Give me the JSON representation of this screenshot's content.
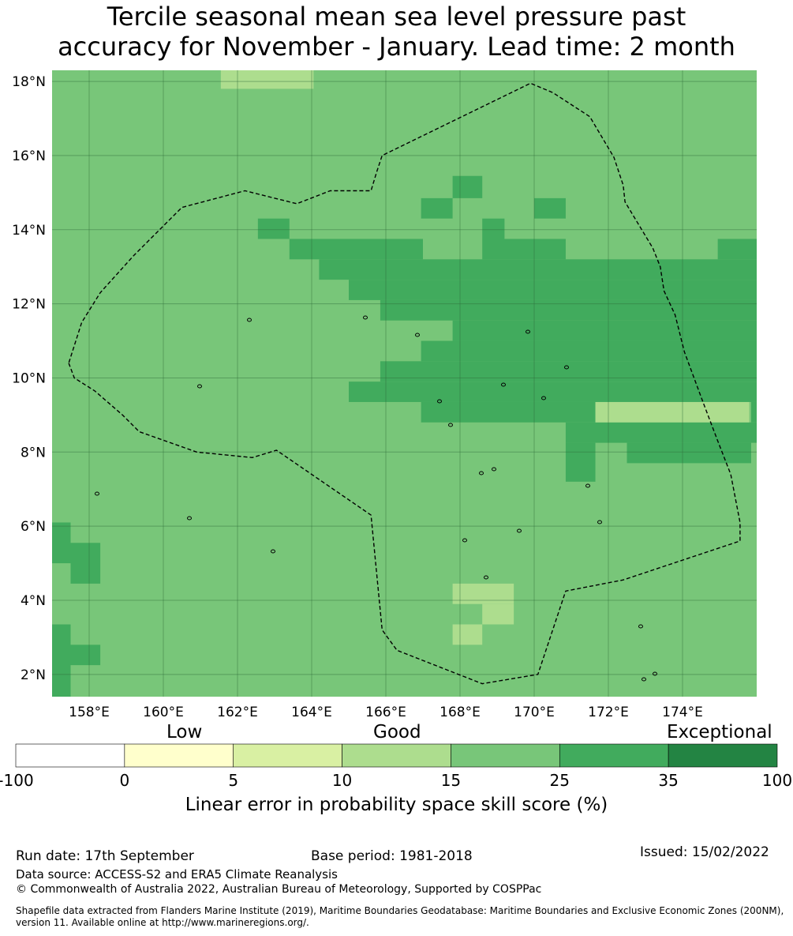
{
  "title_line1": "Tercile seasonal mean sea level pressure past",
  "title_line2": "accuracy for November - January. Lead time: 2 month",
  "map": {
    "lon_range": [
      157.0,
      176.0
    ],
    "lat_range": [
      1.4,
      18.3
    ],
    "lon_ticks": [
      "158°E",
      "160°E",
      "162°E",
      "164°E",
      "166°E",
      "168°E",
      "170°E",
      "172°E",
      "174°E"
    ],
    "lat_ticks": [
      "2°N",
      "4°N",
      "6°N",
      "8°N",
      "10°N",
      "12°N",
      "14°N",
      "16°N",
      "18°N"
    ],
    "background_category": "15-25",
    "eez_boundary": [
      [
        157.45,
        10.4
      ],
      [
        157.6,
        10.0
      ],
      [
        158.15,
        9.65
      ],
      [
        158.9,
        9.0
      ],
      [
        159.35,
        8.55
      ],
      [
        160.9,
        8.0
      ],
      [
        162.4,
        7.85
      ],
      [
        163.05,
        8.05
      ],
      [
        165.6,
        6.3
      ],
      [
        165.9,
        3.2
      ],
      [
        166.3,
        2.65
      ],
      [
        168.6,
        1.75
      ],
      [
        170.1,
        2.0
      ],
      [
        170.85,
        4.25
      ],
      [
        172.4,
        4.55
      ],
      [
        175.55,
        5.6
      ],
      [
        175.55,
        6.1
      ],
      [
        175.3,
        7.4
      ],
      [
        174.95,
        8.3
      ],
      [
        174.55,
        9.35
      ],
      [
        174.05,
        10.7
      ],
      [
        173.8,
        11.7
      ],
      [
        173.5,
        12.35
      ],
      [
        173.4,
        13.0
      ],
      [
        173.2,
        13.5
      ],
      [
        172.45,
        14.75
      ],
      [
        172.4,
        15.2
      ],
      [
        172.15,
        15.95
      ],
      [
        171.5,
        17.05
      ],
      [
        170.5,
        17.7
      ],
      [
        169.9,
        17.95
      ],
      [
        165.9,
        16.0
      ],
      [
        165.75,
        15.55
      ],
      [
        165.6,
        15.05
      ],
      [
        164.5,
        15.05
      ],
      [
        163.6,
        14.7
      ],
      [
        163.0,
        14.85
      ],
      [
        162.2,
        15.05
      ],
      [
        160.5,
        14.6
      ],
      [
        159.2,
        13.3
      ],
      [
        158.3,
        12.3
      ],
      [
        157.8,
        11.5
      ]
    ],
    "skill_cells": [
      {
        "lon0": 161.55,
        "lon1": 164.05,
        "lat0": 17.8,
        "lat1": 18.35,
        "category": "10-15"
      },
      {
        "lon0": 167.8,
        "lon1": 168.6,
        "lat0": 14.85,
        "lat1": 15.45,
        "category": "25-35"
      },
      {
        "lon0": 166.95,
        "lon1": 167.8,
        "lat0": 14.3,
        "lat1": 14.85,
        "category": "25-35"
      },
      {
        "lon0": 170.0,
        "lon1": 170.85,
        "lat0": 14.3,
        "lat1": 14.85,
        "category": "25-35"
      },
      {
        "lon0": 162.55,
        "lon1": 163.4,
        "lat0": 13.75,
        "lat1": 14.3,
        "category": "25-35"
      },
      {
        "lon0": 168.6,
        "lon1": 169.2,
        "lat0": 13.75,
        "lat1": 14.3,
        "category": "25-35"
      },
      {
        "lon0": 163.4,
        "lon1": 167.0,
        "lat0": 13.2,
        "lat1": 13.75,
        "category": "25-35"
      },
      {
        "lon0": 168.6,
        "lon1": 170.85,
        "lat0": 13.2,
        "lat1": 13.75,
        "category": "25-35"
      },
      {
        "lon0": 174.95,
        "lon1": 176.0,
        "lat0": 13.2,
        "lat1": 13.75,
        "category": "25-35"
      },
      {
        "lon0": 164.2,
        "lon1": 176.0,
        "lat0": 12.65,
        "lat1": 13.2,
        "category": "25-35"
      },
      {
        "lon0": 165.0,
        "lon1": 176.0,
        "lat0": 12.1,
        "lat1": 12.65,
        "category": "25-35"
      },
      {
        "lon0": 165.85,
        "lon1": 176.0,
        "lat0": 11.55,
        "lat1": 12.1,
        "category": "25-35"
      },
      {
        "lon0": 167.8,
        "lon1": 176.0,
        "lat0": 11.0,
        "lat1": 11.55,
        "category": "25-35"
      },
      {
        "lon0": 166.95,
        "lon1": 176.0,
        "lat0": 10.45,
        "lat1": 11.0,
        "category": "25-35"
      },
      {
        "lon0": 165.85,
        "lon1": 176.0,
        "lat0": 9.9,
        "lat1": 10.45,
        "category": "25-35"
      },
      {
        "lon0": 165.0,
        "lon1": 176.0,
        "lat0": 9.35,
        "lat1": 9.9,
        "category": "25-35"
      },
      {
        "lon0": 166.95,
        "lon1": 171.65,
        "lat0": 8.8,
        "lat1": 9.35,
        "category": "25-35"
      },
      {
        "lon0": 175.85,
        "lon1": 176.0,
        "lat0": 8.8,
        "lat1": 9.35,
        "category": "25-35"
      },
      {
        "lon0": 170.85,
        "lon1": 176.0,
        "lat0": 8.25,
        "lat1": 8.8,
        "category": "25-35"
      },
      {
        "lon0": 170.85,
        "lon1": 171.65,
        "lat0": 7.2,
        "lat1": 8.25,
        "category": "25-35"
      },
      {
        "lon0": 172.5,
        "lon1": 175.85,
        "lat0": 7.7,
        "lat1": 8.25,
        "category": "25-35"
      },
      {
        "lon0": 157.0,
        "lon1": 157.5,
        "lat0": 5.0,
        "lat1": 6.1,
        "category": "25-35"
      },
      {
        "lon0": 157.5,
        "lon1": 158.3,
        "lat0": 4.45,
        "lat1": 5.55,
        "category": "25-35"
      },
      {
        "lon0": 157.0,
        "lon1": 157.5,
        "lat0": 1.4,
        "lat1": 3.35,
        "category": "25-35"
      },
      {
        "lon0": 157.5,
        "lon1": 158.3,
        "lat0": 2.25,
        "lat1": 2.8,
        "category": "25-35"
      },
      {
        "lon0": 171.65,
        "lon1": 175.8,
        "lat0": 8.8,
        "lat1": 9.35,
        "category": "10-15"
      },
      {
        "lon0": 167.8,
        "lon1": 169.45,
        "lat0": 3.9,
        "lat1": 4.45,
        "category": "10-15"
      },
      {
        "lon0": 168.6,
        "lon1": 169.45,
        "lat0": 3.35,
        "lat1": 3.9,
        "category": "10-15"
      },
      {
        "lon0": 167.8,
        "lon1": 168.6,
        "lat0": 2.8,
        "lat1": 3.35,
        "category": "10-15"
      }
    ]
  },
  "colorbar": {
    "categories": [
      {
        "range": "-100-0",
        "color": "#ffffff"
      },
      {
        "range": "0-5",
        "color": "#ffffcc"
      },
      {
        "range": "5-10",
        "color": "#d9f0a3"
      },
      {
        "range": "10-15",
        "color": "#addd8e"
      },
      {
        "range": "15-25",
        "color": "#78c679"
      },
      {
        "range": "25-35",
        "color": "#41ab5d"
      },
      {
        "range": "35-100",
        "color": "#238443"
      }
    ],
    "ticks": [
      "-100",
      "0",
      "5",
      "10",
      "15",
      "25",
      "35",
      "100"
    ],
    "labels": {
      "low": "Low",
      "good": "Good",
      "exceptional": "Exceptional"
    },
    "title": "Linear error in probability space skill score (%)"
  },
  "footer": {
    "run_date": "Run date: 17th September",
    "base_period": "Base period: 1981-2018",
    "issued": "Issued: 15/02/2022",
    "data_source": "Data source: ACCESS-S2 and ERA5 Climate Reanalysis",
    "copyright": "© Commonwealth of Australia 2022, Australian Bureau of Meteorology, Supported by COSPPac",
    "shapefile_line1": "Shapefile data extracted from Flanders Marine Institute (2019), Maritime Boundaries Geodatabase: Maritime Boundaries and Exclusive Economic Zones (200NM),",
    "shapefile_line2": "version 11. Available online at http://www.marineregions.org/."
  }
}
